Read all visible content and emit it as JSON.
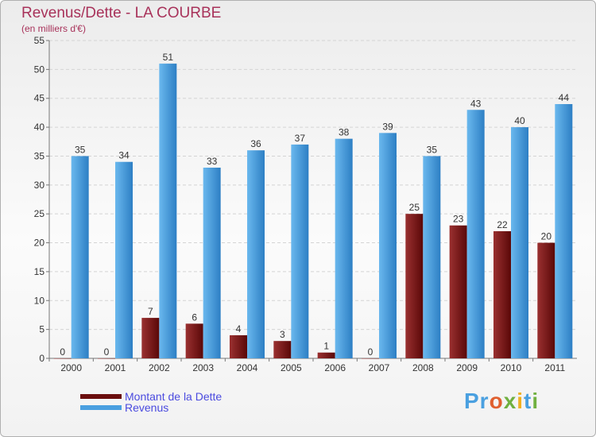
{
  "chart_data": {
    "type": "bar",
    "title": "Revenus/Dette - LA COURBE",
    "subtitle": "(en milliers d'€)",
    "xlabel": "",
    "ylabel": "",
    "ylim": [
      0,
      55
    ],
    "yticks": [
      0,
      5,
      10,
      15,
      20,
      25,
      30,
      35,
      40,
      45,
      50,
      55
    ],
    "grid": true,
    "categories": [
      "2000",
      "2001",
      "2002",
      "2003",
      "2004",
      "2005",
      "2006",
      "2007",
      "2008",
      "2009",
      "2010",
      "2011"
    ],
    "series": [
      {
        "name": "Montant de la Dette",
        "color": "#7a1a1a",
        "values": [
          0,
          0,
          7,
          6,
          4,
          3,
          1,
          0,
          25,
          23,
          22,
          20
        ]
      },
      {
        "name": "Revenus",
        "color": "#4a9fe0",
        "values": [
          35,
          34,
          51,
          33,
          36,
          37,
          38,
          39,
          35,
          43,
          40,
          44
        ]
      }
    ],
    "legend_position": "bottom-left"
  },
  "legend": {
    "items": [
      {
        "label": "Montant de la Dette",
        "color": "#6b0e0e"
      },
      {
        "label": "Revenus",
        "color": "#4a9fe0"
      }
    ]
  },
  "branding": {
    "logo_text": "Proxiti"
  }
}
